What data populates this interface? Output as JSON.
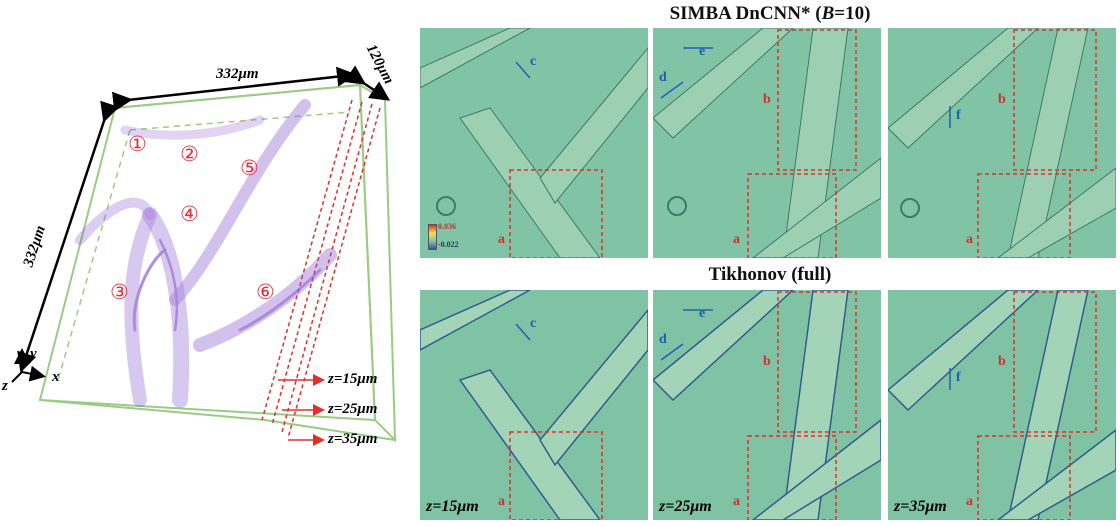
{
  "left_volume": {
    "dim_x": "332μm",
    "dim_y": "332μm",
    "dim_z": "120μm",
    "axis_x": "x",
    "axis_y": "y",
    "axis_z": "z",
    "regions": [
      "①",
      "②",
      "③",
      "④",
      "⑤",
      "⑥"
    ],
    "depth_labels": [
      "z=15μm",
      "z=25μm",
      "z=35μm"
    ]
  },
  "rows": [
    {
      "title_prefix": "SIMBA DnCNN* (",
      "title_italic": "B",
      "title_suffix": "=10)"
    },
    {
      "title": "Tikhonov (full)"
    }
  ],
  "colorbar": {
    "max": "0.036",
    "min": "-0.022"
  },
  "panels": [
    {
      "boxes": [
        "a"
      ],
      "arrows": [
        "c"
      ],
      "z": ""
    },
    {
      "boxes": [
        "b",
        "a"
      ],
      "arrows": [
        "e",
        "d"
      ],
      "z": ""
    },
    {
      "boxes": [
        "b",
        "a"
      ],
      "arrows": [
        "f"
      ],
      "z": ""
    },
    {
      "boxes": [
        "a"
      ],
      "arrows": [
        "c"
      ],
      "z": "z=15μm"
    },
    {
      "boxes": [
        "b",
        "a"
      ],
      "arrows": [
        "e",
        "d"
      ],
      "z": "z=25μm"
    },
    {
      "boxes": [
        "b",
        "a"
      ],
      "arrows": [
        "f"
      ],
      "z": "z=35μm"
    }
  ],
  "colors": {
    "box": "#e0302a",
    "arrow": "#2060b8",
    "volume": "#8a5ad0",
    "frame": "#9acb84"
  }
}
